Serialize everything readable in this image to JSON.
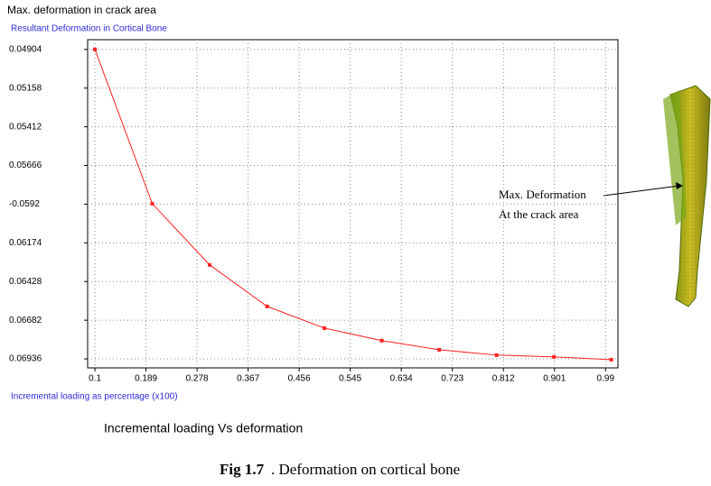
{
  "chart_data": {
    "type": "line",
    "window_title": "Max. deformation in crack area",
    "ylabel": "Resultant Deformation in Cortical Bone",
    "xlabel": "Incremental loading as percentage (x100)",
    "subtitle": "Incremental loading Vs deformation",
    "x": [
      0.1,
      0.2,
      0.3,
      0.4,
      0.5,
      0.6,
      0.7,
      0.8,
      0.9,
      1.0
    ],
    "series": [
      {
        "name": "Resultant Deformation",
        "color": "#ff2020",
        "values": [
          -0.04904,
          -0.05917,
          -0.06319,
          -0.06591,
          -0.06734,
          -0.06816,
          -0.06876,
          -0.06911,
          -0.06923,
          -0.06941
        ]
      }
    ],
    "xlim": [
      0.0873,
      1.0116
    ],
    "xticks": [
      0.1,
      0.189,
      0.278,
      0.367,
      0.456,
      0.545,
      0.634,
      0.723,
      0.812,
      0.901,
      0.99
    ],
    "ylim": [
      -0.06995,
      -0.0484
    ],
    "yticks": [
      {
        "value": -0.04904,
        "label": "0.04904"
      },
      {
        "value": -0.05158,
        "label": "0.05158"
      },
      {
        "value": -0.05412,
        "label": "0.05412"
      },
      {
        "value": -0.05666,
        "label": "0.05666"
      },
      -0.0592,
      {
        "value": -0.06174,
        "label": "0.06174"
      },
      {
        "value": -0.06428,
        "label": "0.06428"
      },
      {
        "value": -0.06682,
        "label": "0.06682"
      },
      {
        "value": -0.06936,
        "label": "0.06936"
      }
    ],
    "grid": true,
    "annotation": [
      "Max. Deformation",
      "At the crack area"
    ],
    "caption_label": "Fig 1.7",
    "caption": ". Deformation on cortical bone"
  }
}
